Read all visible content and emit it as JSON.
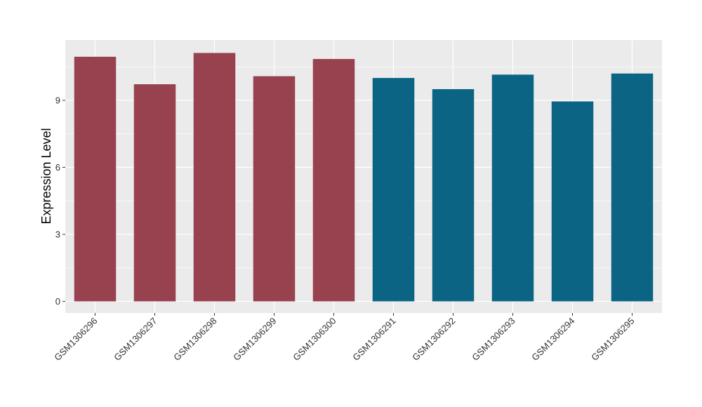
{
  "chart_data": {
    "type": "bar",
    "title": "",
    "xlabel": "",
    "ylabel": "Expression Level",
    "categories": [
      "GSM1306296",
      "GSM1306297",
      "GSM1306298",
      "GSM1306299",
      "GSM1306300",
      "GSM1306291",
      "GSM1306292",
      "GSM1306293",
      "GSM1306294",
      "GSM1306295"
    ],
    "values": [
      10.95,
      9.72,
      11.12,
      10.08,
      10.85,
      10.0,
      9.5,
      10.15,
      8.95,
      10.2
    ],
    "bar_colors": [
      "#99424f",
      "#99424f",
      "#99424f",
      "#99424f",
      "#99424f",
      "#0c6485",
      "#0c6485",
      "#0c6485",
      "#0c6485",
      "#0c6485"
    ],
    "yticks": [
      0,
      3,
      6,
      9
    ],
    "ylim": [
      -0.52,
      11.7
    ],
    "grid": true,
    "panel_background": "#ebebeb",
    "grid_color": "#ffffff"
  }
}
